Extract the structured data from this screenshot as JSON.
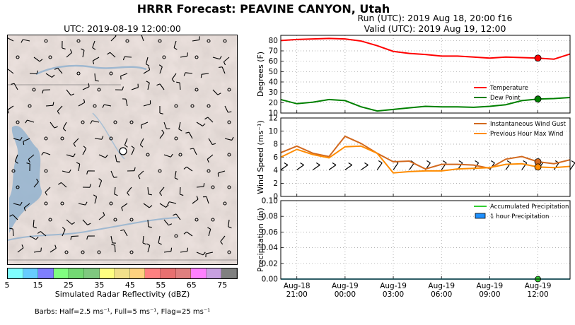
{
  "title": "HRRR Forecast: PEAVINE CANYON, Utah",
  "run_line": "Run (UTC): 2019 Aug 18, 20:00 f16",
  "valid_line": "Valid (UTC): 2019 Aug 19, 12:00",
  "map": {
    "title": "UTC: 2019-08-19 12:00:00",
    "colorbar_label": "Simulated Radar Reflectivity (dBZ)",
    "colorbar_ticks": [
      "5",
      "15",
      "25",
      "35",
      "45",
      "55",
      "65",
      "75"
    ],
    "colorbar_colors": [
      "#7fffff",
      "#66ccff",
      "#7f7fff",
      "#80ff80",
      "#73d973",
      "#7fc97f",
      "#ffff80",
      "#f1e08a",
      "#ffd27f",
      "#ff8080",
      "#e87070",
      "#e07f7f",
      "#ff80ff",
      "#c8a0e0",
      "#808080"
    ],
    "barb_note": "Barbs: Half=2.5 ms⁻¹, Full=5 ms⁻¹, Flag=25 ms⁻¹"
  },
  "chart_data": [
    {
      "type": "line",
      "ylabel": "Degrees (F)",
      "ylim": [
        10,
        85
      ],
      "yticks": [
        "10",
        "20",
        "30",
        "40",
        "50",
        "60",
        "70",
        "80"
      ],
      "x": [
        "2019-08-18 20:00",
        "2019-08-18 21:00",
        "2019-08-18 22:00",
        "2019-08-18 23:00",
        "2019-08-19 00:00",
        "2019-08-19 01:00",
        "2019-08-19 02:00",
        "2019-08-19 03:00",
        "2019-08-19 04:00",
        "2019-08-19 05:00",
        "2019-08-19 06:00",
        "2019-08-19 07:00",
        "2019-08-19 08:00",
        "2019-08-19 09:00",
        "2019-08-19 10:00",
        "2019-08-19 11:00",
        "2019-08-19 12:00",
        "2019-08-19 13:00",
        "2019-08-19 14:00"
      ],
      "series": [
        {
          "name": "Temperature",
          "color": "#ff0000",
          "values": [
            80,
            81,
            81.5,
            82,
            81.5,
            79.5,
            75,
            69.5,
            67.5,
            66.5,
            65,
            65,
            64,
            63,
            64,
            63.5,
            63,
            62,
            67
          ]
        },
        {
          "name": "Dew Point",
          "color": "#008000",
          "values": [
            23,
            19,
            20.5,
            23,
            22,
            16,
            12,
            13.5,
            15,
            16.5,
            16,
            16,
            15.5,
            16.5,
            18,
            22,
            23.5,
            24,
            25
          ]
        }
      ],
      "legend_position": "lower-right",
      "grid": true
    },
    {
      "type": "line",
      "ylabel": "Wind Speed (ms⁻¹)",
      "ylim": [
        0,
        12
      ],
      "yticks": [
        "0",
        "2",
        "4",
        "6",
        "8",
        "10",
        "12"
      ],
      "series": [
        {
          "name": "Instantaneous Wind Gust",
          "color": "#d2691e",
          "values": [
            6.7,
            7.7,
            6.6,
            6.1,
            9.2,
            8.1,
            6.6,
            5.3,
            5.4,
            4.2,
            4.9,
            4.9,
            4.8,
            4.3,
            5.7,
            6.1,
            5.3,
            5.0,
            5.6
          ]
        },
        {
          "name": "Previous Hour Max Wind",
          "color": "#ff8c00",
          "values": [
            6.0,
            7.2,
            6.4,
            5.9,
            7.6,
            7.7,
            6.6,
            3.6,
            3.8,
            3.9,
            3.9,
            4.2,
            4.3,
            4.4,
            4.9,
            5.0,
            4.5,
            4.4,
            4.6
          ]
        }
      ],
      "barb_row": {
        "y": 4.5
      },
      "legend_position": "upper-right",
      "grid": true
    },
    {
      "type": "area",
      "ylabel": "Precipitation (in)",
      "ylim": [
        0,
        0.1
      ],
      "yticks": [
        "0.00",
        "0.02",
        "0.04",
        "0.06",
        "0.08",
        "0.10"
      ],
      "series": [
        {
          "name": "Accumulated Precipitation",
          "color": "#32cd32",
          "values": [
            0,
            0,
            0,
            0,
            0,
            0,
            0,
            0,
            0,
            0,
            0,
            0,
            0,
            0,
            0,
            0,
            0,
            0,
            0
          ]
        },
        {
          "name": "1 hour Precipitation",
          "color": "#1e90ff",
          "values": [
            0,
            0,
            0,
            0,
            0,
            0,
            0,
            0,
            0,
            0,
            0,
            0,
            0,
            0,
            0,
            0,
            0,
            0,
            0
          ]
        }
      ],
      "legend_position": "upper-right",
      "grid": true,
      "x_tick_labels": [
        [
          "Aug-18",
          "21:00"
        ],
        [
          "Aug-19",
          "00:00"
        ],
        [
          "Aug-19",
          "03:00"
        ],
        [
          "Aug-19",
          "06:00"
        ],
        [
          "Aug-19",
          "09:00"
        ],
        [
          "Aug-19",
          "12:00"
        ]
      ]
    }
  ]
}
